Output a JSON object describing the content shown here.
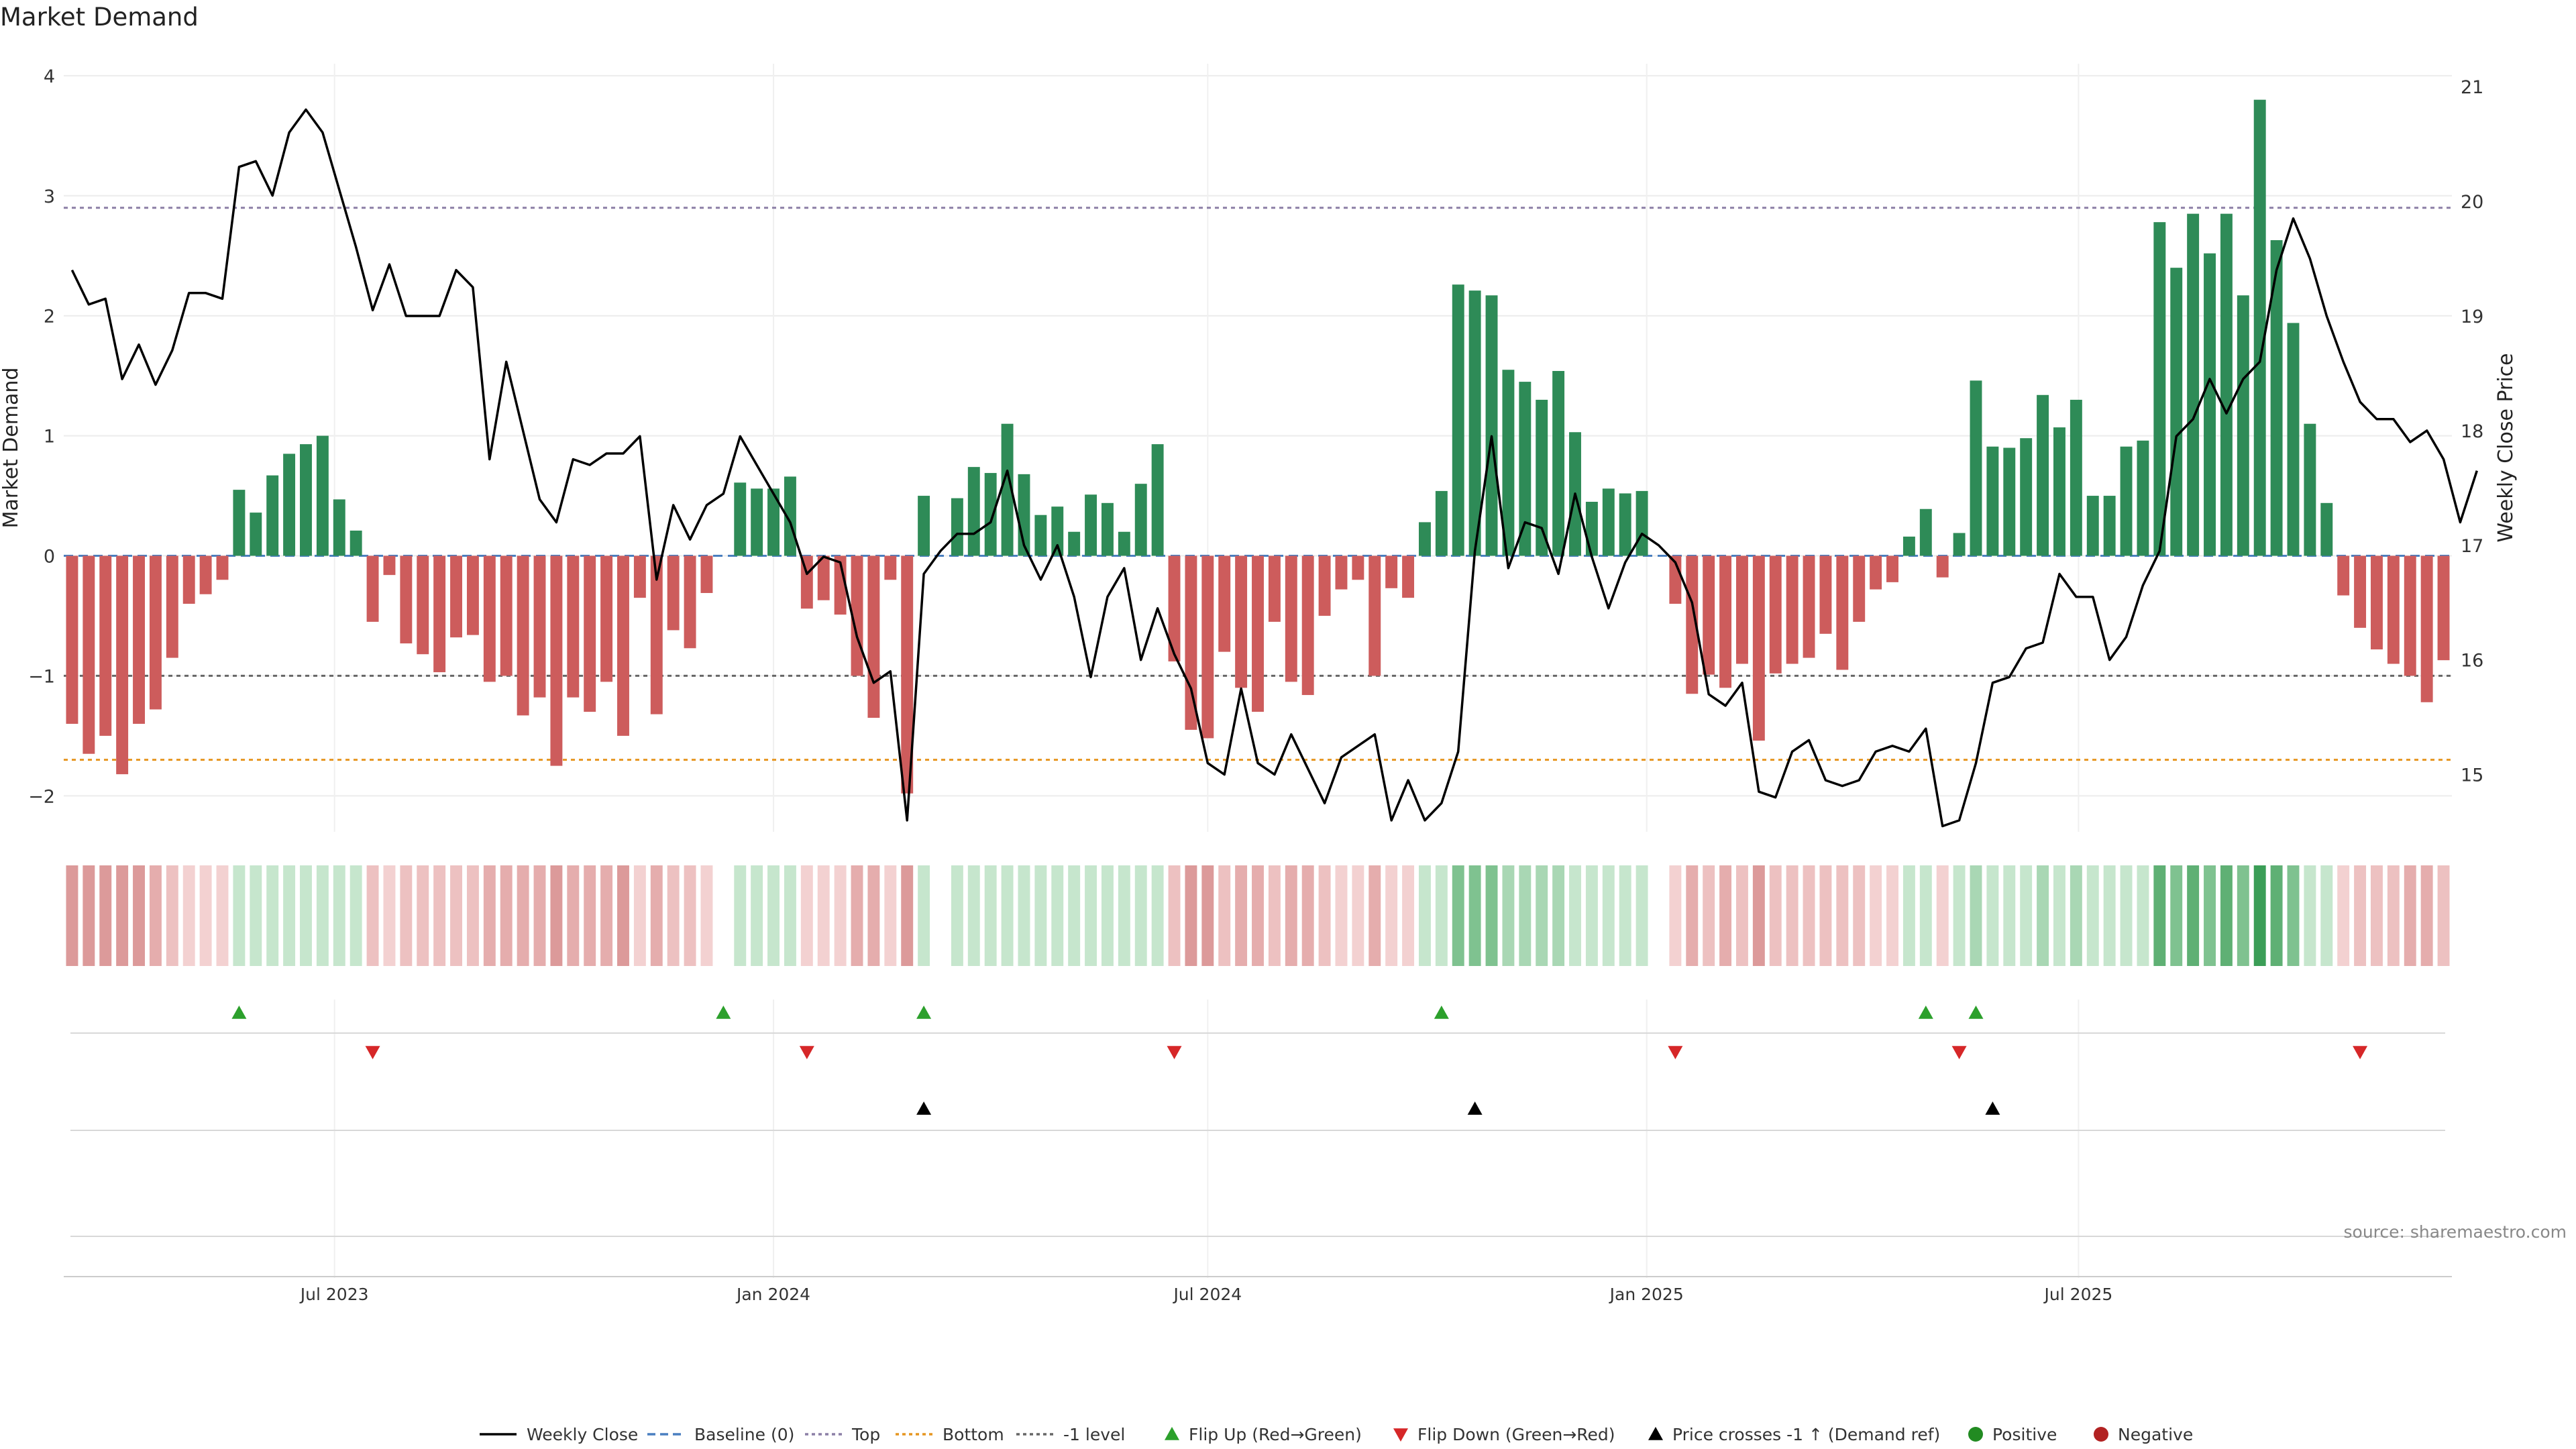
{
  "chart_data": {
    "type": "bar",
    "title": "Market Demand",
    "ylabel": "Market Demand",
    "y2label": "Weekly Close Price",
    "source": "source: sharemaestro.com",
    "x_start": "2023-03-13",
    "ylim": [
      -2.3,
      4.1
    ],
    "y2lim": [
      14.5,
      21.2
    ],
    "yticks": [
      {
        "v": 4,
        "label": "4"
      },
      {
        "v": 3,
        "label": "3"
      },
      {
        "v": 2,
        "label": "2"
      },
      {
        "v": 1,
        "label": "1"
      },
      {
        "v": 0,
        "label": "0"
      },
      {
        "v": -1,
        "label": "−1"
      },
      {
        "v": -2,
        "label": "−2"
      }
    ],
    "y2ticks": [
      {
        "v": 21,
        "label": "21"
      },
      {
        "v": 20,
        "label": "20"
      },
      {
        "v": 19,
        "label": "19"
      },
      {
        "v": 18,
        "label": "18"
      },
      {
        "v": 17,
        "label": "17"
      },
      {
        "v": 16,
        "label": "16"
      },
      {
        "v": 15,
        "label": "15"
      }
    ],
    "xticks": [
      {
        "date": "2023-07-01",
        "label": "Jul 2023"
      },
      {
        "date": "2024-01-01",
        "label": "Jan 2024"
      },
      {
        "date": "2024-07-01",
        "label": "Jul 2024"
      },
      {
        "date": "2025-01-01",
        "label": "Jan 2025"
      },
      {
        "date": "2025-07-01",
        "label": "Jul 2025"
      }
    ],
    "reference_lines": {
      "top": 2.9,
      "bottom": -1.7,
      "minus1": -1
    },
    "series": [
      {
        "name": "Market Demand",
        "values": [
          -1.4,
          -1.65,
          -1.5,
          -1.82,
          -1.4,
          -1.28,
          -0.85,
          -0.4,
          -0.32,
          -0.2,
          0.55,
          0.36,
          0.67,
          0.85,
          0.93,
          1.0,
          0.47,
          0.21,
          -0.55,
          -0.16,
          -0.73,
          -0.82,
          -0.97,
          -0.68,
          -0.66,
          -1.05,
          -1.0,
          -1.33,
          -1.18,
          -1.75,
          -1.18,
          -1.3,
          -1.05,
          -1.5,
          -0.35,
          -1.32,
          -0.62,
          -0.77,
          -0.31,
          0.0,
          0.61,
          0.56,
          0.56,
          0.66,
          -0.44,
          -0.37,
          -0.49,
          -1.0,
          -1.35,
          -0.2,
          -1.98,
          0.5,
          0.0,
          0.48,
          0.74,
          0.69,
          1.1,
          0.68,
          0.34,
          0.41,
          0.2,
          0.51,
          0.44,
          0.2,
          0.6,
          0.93,
          -0.88,
          -1.45,
          -1.52,
          -0.8,
          -1.1,
          -1.3,
          -0.55,
          -1.05,
          -1.16,
          -0.5,
          -0.28,
          -0.2,
          -1.0,
          -0.27,
          -0.35,
          0.28,
          0.54,
          2.26,
          2.21,
          2.17,
          1.55,
          1.45,
          1.3,
          1.54,
          1.03,
          0.45,
          0.56,
          0.52,
          0.54,
          0.0,
          -0.4,
          -1.15,
          -0.99,
          -1.1,
          -0.9,
          -1.54,
          -0.98,
          -0.9,
          -0.85,
          -0.65,
          -0.95,
          -0.55,
          -0.28,
          -0.22,
          0.16,
          0.39,
          -0.18,
          0.19,
          1.46,
          0.91,
          0.9,
          0.98,
          1.34,
          1.07,
          1.3,
          0.5,
          0.5,
          0.91,
          0.96,
          2.78,
          2.4,
          2.85,
          2.52,
          2.85,
          2.17,
          3.8,
          2.63,
          1.94,
          1.1,
          0.44,
          -0.33,
          -0.6,
          -0.78,
          -0.9,
          -1.0,
          -1.22,
          -0.87
        ]
      },
      {
        "name": "Weekly Close",
        "values": [
          19.4,
          19.1,
          19.15,
          18.45,
          18.75,
          18.4,
          18.7,
          19.2,
          19.2,
          19.15,
          20.3,
          20.35,
          20.05,
          20.6,
          20.8,
          20.6,
          20.1,
          19.6,
          19.05,
          19.45,
          19.0,
          19.0,
          19.0,
          19.4,
          19.25,
          17.75,
          18.6,
          18.0,
          17.4,
          17.2,
          17.75,
          17.7,
          17.8,
          17.8,
          17.95,
          16.7,
          17.35,
          17.05,
          17.35,
          17.45,
          17.95,
          17.7,
          17.45,
          17.2,
          16.75,
          16.9,
          16.85,
          16.2,
          15.8,
          15.9,
          14.6,
          16.75,
          16.95,
          17.1,
          17.1,
          17.2,
          17.65,
          17.0,
          16.7,
          17.0,
          16.55,
          15.85,
          16.55,
          16.8,
          16.0,
          16.45,
          16.05,
          15.75,
          15.1,
          15.0,
          15.75,
          15.1,
          15.0,
          15.35,
          15.05,
          14.75,
          15.15,
          15.25,
          15.35,
          14.6,
          14.95,
          14.6,
          14.75,
          15.2,
          16.95,
          17.95,
          16.8,
          17.2,
          17.15,
          16.75,
          17.45,
          16.9,
          16.45,
          16.85,
          17.1,
          17.0,
          16.85,
          16.5,
          15.7,
          15.6,
          15.8,
          14.85,
          14.8,
          15.2,
          15.3,
          14.95,
          14.9,
          14.95,
          15.2,
          15.25,
          15.2,
          15.4,
          14.55,
          14.6,
          15.1,
          15.8,
          15.85,
          16.1,
          16.15,
          16.75,
          16.55,
          16.55,
          16.0,
          16.2,
          16.65,
          16.95,
          17.95,
          18.1,
          18.45,
          18.15,
          18.45,
          18.6,
          19.4,
          19.85,
          19.5,
          19.0,
          18.6,
          18.25,
          18.1,
          18.1,
          17.9,
          18.0,
          17.75,
          17.2,
          17.65
        ]
      }
    ],
    "flip_up": [
      10,
      39,
      51,
      82,
      111,
      114
    ],
    "flip_down": [
      18,
      44,
      66,
      96,
      113,
      137
    ],
    "price_cross": [
      51,
      84,
      115
    ],
    "legend": [
      "Weekly Close",
      "Baseline (0)",
      "Top",
      "Bottom",
      "-1 level",
      "Flip Up (Red→Green)",
      "Flip Down (Green→Red)",
      "Price crosses -1 ↑ (Demand ref)",
      "Positive",
      "Negative"
    ],
    "colors": {
      "pos": "#2e8b57",
      "neg": "#cd5c5c",
      "price": "#000000",
      "baseline": "#4a7fc0",
      "top": "#8c7fa6",
      "bottom": "#e69520",
      "minus1": "#666666",
      "up": "#2ca02c",
      "down": "#d62728",
      "pos_dot": "#228b22",
      "neg_dot": "#b22222"
    }
  }
}
